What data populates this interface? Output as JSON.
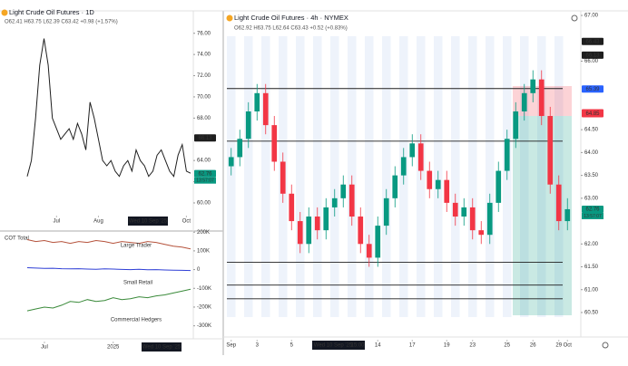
{
  "chart_data": [
    {
      "type": "line",
      "title": "Light Crude Oil Futures · 1D",
      "ohlc": "O62.41 H63.75 L62.39 C63.42 +0.98 (+1.57%)",
      "values": [
        62.5,
        64,
        68,
        73,
        75.5,
        73,
        68,
        67,
        66,
        66.5,
        67,
        66,
        67.5,
        66.5,
        65,
        69.5,
        68,
        66,
        64,
        63.5,
        64,
        63,
        62.5,
        63.5,
        64,
        63,
        65,
        64,
        63.5,
        62.5,
        63,
        64.5,
        65,
        64,
        63,
        62.5,
        64.5,
        65.5,
        63,
        62.8
      ],
      "color": "#1e1e1e",
      "ylim": [
        59.4,
        77.6
      ],
      "yticks": [
        {
          "value": 76,
          "label": "76.00"
        },
        {
          "value": 74,
          "label": "74.00"
        },
        {
          "value": 72,
          "label": "72.00"
        },
        {
          "value": 70,
          "label": "70.00"
        },
        {
          "value": 68,
          "label": "68.00"
        },
        {
          "value": 64,
          "label": "64.00"
        },
        {
          "value": 62,
          "label": "62.00"
        },
        {
          "value": 60,
          "label": "60.00"
        }
      ],
      "xlim": [
        0,
        39
      ],
      "xticks": [
        {
          "value": 7,
          "label": "Jul"
        },
        {
          "value": 17,
          "label": "Aug"
        },
        {
          "value": 38,
          "label": "Oct"
        }
      ],
      "crosshair": "Wed 10 Sep '25",
      "price_labels": [
        {
          "value": 66.13,
          "color": "#1e1e1e"
        },
        {
          "value": 62.76,
          "color": "#089981"
        }
      ],
      "countdown": "13:57:07"
    },
    {
      "type": "candlestick",
      "title": "Light Crude Oil Futures · 4h · NYMEX",
      "ohlc": "O62.92 H63.75 L62.64 C63.43 +0.52 (+0.83%)",
      "open": [
        63.7,
        63.9,
        64.3,
        64.9,
        65.3,
        64.6,
        63.8,
        63.1,
        62.5,
        62.0,
        62.6,
        62.3,
        62.8,
        63.0,
        63.3,
        62.6,
        62.0,
        61.7,
        62.4,
        63.0,
        63.5,
        63.9,
        64.2,
        63.6,
        63.2,
        63.4,
        62.9,
        62.6,
        62.8,
        62.3,
        62.2,
        62.9,
        63.6,
        64.3,
        64.9,
        65.3,
        65.6,
        64.8,
        63.3,
        62.5
      ],
      "high": [
        64.1,
        64.5,
        65.1,
        65.5,
        65.5,
        64.8,
        64.0,
        63.3,
        62.7,
        62.8,
        62.8,
        63.0,
        63.2,
        63.5,
        63.5,
        62.8,
        62.2,
        62.6,
        63.2,
        63.7,
        64.1,
        64.4,
        64.4,
        63.8,
        63.6,
        63.6,
        63.1,
        63.0,
        63.0,
        62.5,
        63.1,
        63.8,
        64.5,
        65.1,
        65.5,
        65.8,
        65.8,
        65.0,
        63.5,
        63.0
      ],
      "low": [
        63.5,
        63.7,
        64.1,
        64.7,
        64.4,
        63.6,
        62.9,
        62.3,
        61.8,
        61.8,
        62.1,
        62.1,
        62.6,
        62.8,
        62.4,
        61.8,
        61.5,
        61.5,
        62.2,
        62.8,
        63.3,
        63.7,
        63.4,
        63.0,
        63.0,
        62.7,
        62.4,
        62.4,
        62.1,
        62.0,
        62.0,
        62.7,
        63.4,
        64.1,
        64.7,
        65.1,
        64.6,
        63.1,
        62.3,
        62.3
      ],
      "close": [
        63.9,
        64.3,
        64.9,
        65.3,
        64.6,
        63.8,
        63.1,
        62.5,
        62.0,
        62.6,
        62.3,
        62.8,
        63.0,
        63.3,
        62.6,
        62.0,
        61.7,
        62.4,
        63.0,
        63.5,
        63.9,
        64.2,
        63.6,
        63.2,
        63.4,
        62.9,
        62.6,
        62.8,
        62.3,
        62.2,
        62.9,
        63.6,
        64.3,
        64.9,
        65.3,
        65.6,
        64.8,
        63.3,
        62.5,
        62.76
      ],
      "up_color": "#089981",
      "down_color": "#f23645",
      "ylim": [
        60.4,
        67.1
      ],
      "yticks": [
        {
          "value": 67,
          "label": "67.00"
        },
        {
          "value": 66,
          "label": "66.00"
        },
        {
          "value": 64.5,
          "label": "64.50"
        },
        {
          "value": 64,
          "label": "64.00"
        },
        {
          "value": 63.5,
          "label": "63.50"
        },
        {
          "value": 63,
          "label": "63.00"
        },
        {
          "value": 62,
          "label": "62.00"
        },
        {
          "value": 61.5,
          "label": "61.50"
        },
        {
          "value": 61,
          "label": "61.00"
        },
        {
          "value": 60.5,
          "label": "60.50"
        }
      ],
      "xlim": [
        -0.5,
        39.5
      ],
      "xticks": [
        {
          "value": 0,
          "label": "Sep"
        },
        {
          "value": 3,
          "label": "3"
        },
        {
          "value": 7,
          "label": "5"
        },
        {
          "value": 17,
          "label": "14"
        },
        {
          "value": 21,
          "label": "17"
        },
        {
          "value": 25,
          "label": "19"
        },
        {
          "value": 28,
          "label": "23"
        },
        {
          "value": 32,
          "label": "25"
        },
        {
          "value": 35,
          "label": "26"
        },
        {
          "value": 38,
          "label": "29"
        },
        {
          "value": 39,
          "label": "Oct"
        }
      ],
      "levels": [
        65.4,
        64.25,
        61.6,
        61.1,
        60.8
      ],
      "crosshair": "Wed 10 Sep '25",
      "crosshair_time": "15:00",
      "price_labels": [
        {
          "value": 66.43,
          "color": "#1e1e1e"
        },
        {
          "value": 66.13,
          "color": "#1e1e1e"
        },
        {
          "value": 65.39,
          "color": "#2962ff"
        },
        {
          "value": 64.87,
          "color": "#f23645"
        },
        {
          "value": 64.85,
          "color": "#f23645"
        },
        {
          "value": 62.76,
          "color": "#089981"
        }
      ],
      "countdown": "13:57:07"
    },
    {
      "type": "line",
      "title": "COT Total",
      "series": [
        {
          "name": "Large Trader",
          "color": "#b5523b",
          "values": [
            160000,
            150000,
            155000,
            145000,
            150000,
            140000,
            150000,
            145000,
            155000,
            150000,
            140000,
            150000,
            145000,
            140000,
            150000,
            145000,
            135000,
            125000,
            120000,
            110000
          ]
        },
        {
          "name": "Small Retail",
          "color": "#2f3fd6",
          "values": [
            10000,
            8000,
            6000,
            7000,
            5000,
            4000,
            5000,
            3000,
            2000,
            4000,
            3000,
            1000,
            0,
            2000,
            -1000,
            0,
            -2000,
            -3000,
            -4000,
            -5000
          ]
        },
        {
          "name": "Commercial Hedgers",
          "color": "#3a8a3a",
          "values": [
            -220000,
            -210000,
            -200000,
            -205000,
            -190000,
            -170000,
            -175000,
            -160000,
            -170000,
            -165000,
            -150000,
            -160000,
            -155000,
            -145000,
            -150000,
            -140000,
            -135000,
            -125000,
            -115000,
            -105000
          ]
        }
      ],
      "ylim": [
        -350000,
        230000
      ],
      "yticks": [
        {
          "value": 200000,
          "label": "200K"
        },
        {
          "value": 100000,
          "label": "100K"
        },
        0,
        {
          "value": -100000,
          "label": "-100K"
        },
        {
          "value": -200000,
          "label": "-200K"
        },
        {
          "value": -300000,
          "label": "-300K"
        }
      ],
      "xlim": [
        0,
        19
      ],
      "xticks": [
        {
          "value": 2,
          "label": "Jul"
        },
        {
          "value": 10,
          "label": "2025"
        }
      ],
      "crosshair": "Wed 10 Sep '25"
    }
  ]
}
